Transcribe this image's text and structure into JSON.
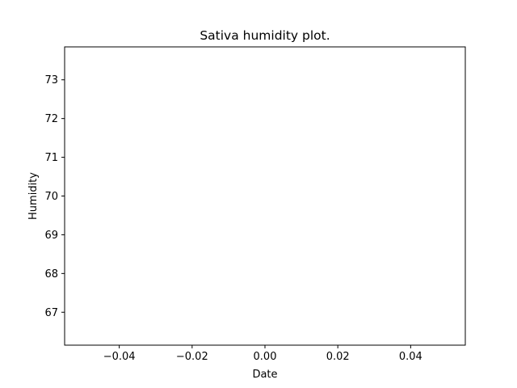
{
  "chart_data": {
    "type": "line",
    "title": "Sativa humidity plot.",
    "xlabel": "Date",
    "ylabel": "Humidity",
    "xlim": [
      -0.055,
      0.055
    ],
    "ylim": [
      66.15,
      73.85
    ],
    "xticks": [
      -0.04,
      -0.02,
      0.0,
      0.02,
      0.04
    ],
    "xtick_labels": [
      "−0.04",
      "−0.02",
      "0.00",
      "0.02",
      "0.04"
    ],
    "yticks": [
      67,
      68,
      69,
      70,
      71,
      72,
      73
    ],
    "ytick_labels": [
      "67",
      "68",
      "69",
      "70",
      "71",
      "72",
      "73"
    ],
    "grid": false,
    "series": [
      {
        "values": []
      }
    ]
  }
}
